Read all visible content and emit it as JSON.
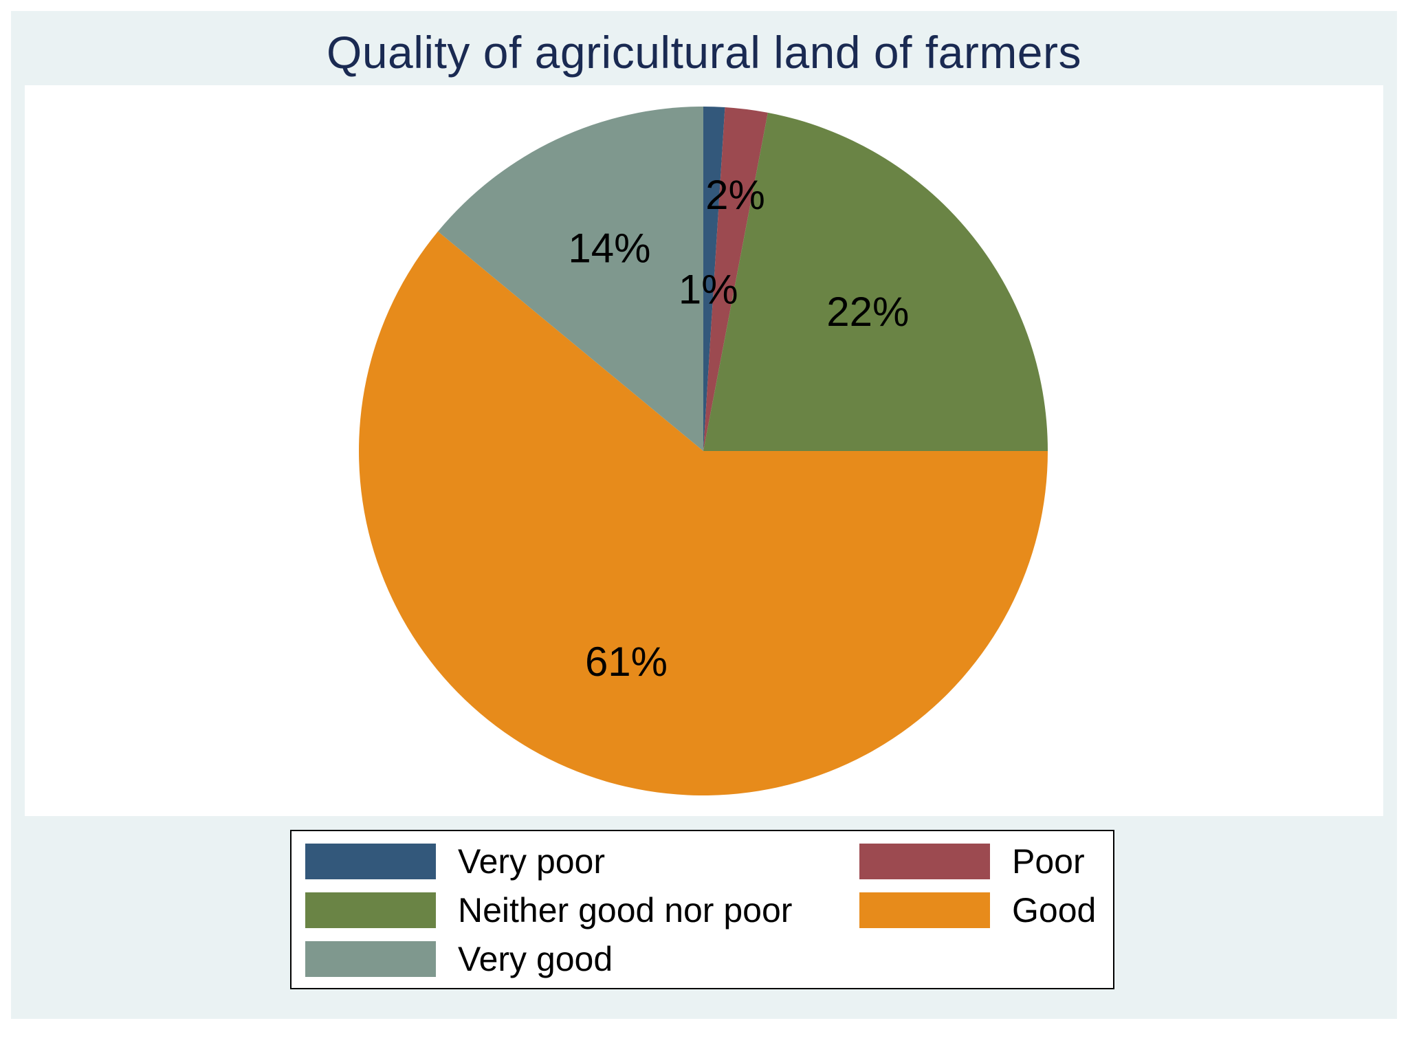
{
  "chart_data": {
    "type": "pie",
    "title": "Quality of agricultural land of farmers",
    "slices": [
      {
        "name": "Very poor",
        "value": 1,
        "label": "1%",
        "color": "#33587b"
      },
      {
        "name": "Poor",
        "value": 2,
        "label": "2%",
        "color": "#9c4a50"
      },
      {
        "name": "Neither good nor poor",
        "value": 22,
        "label": "22%",
        "color": "#6a8445"
      },
      {
        "name": "Good",
        "value": 61,
        "label": "61%",
        "color": "#e78b1b"
      },
      {
        "name": "Very good",
        "value": 14,
        "label": "14%",
        "color": "#7f988e"
      }
    ],
    "start_angle": "12 o'clock",
    "direction": "clockwise",
    "legend": {
      "position": "bottom",
      "columns": 2,
      "entries": [
        "Very poor",
        "Poor",
        "Neither good nor poor",
        "Good",
        "Very good"
      ]
    }
  }
}
